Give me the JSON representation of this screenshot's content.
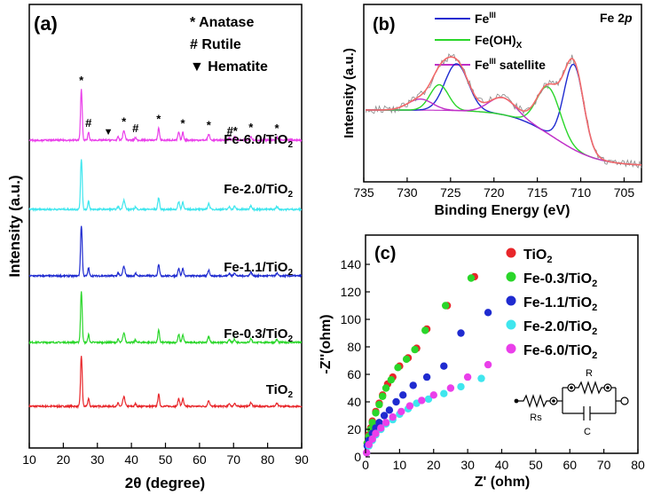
{
  "chart_data": [
    {
      "type": "line",
      "panel": "(a)",
      "xlabel": "2θ (degree)",
      "ylabel": "Intensity (a.u.)",
      "xlim": [
        10,
        90
      ],
      "xticks": [
        10,
        20,
        30,
        40,
        50,
        60,
        70,
        80,
        90
      ],
      "legend": [
        {
          "symbol": "*",
          "label": "Anatase"
        },
        {
          "symbol": "#",
          "label": "Rutile"
        },
        {
          "symbol": "▼",
          "label": "Hematite"
        }
      ],
      "series": [
        {
          "name": "TiO2",
          "label_main": "TiO",
          "label_sub": "2",
          "color": "#e8262a",
          "baseline": 0.0
        },
        {
          "name": "Fe-0.3/TiO2",
          "label_main": "Fe-0.3/TiO",
          "label_sub": "2",
          "color": "#2ad62a",
          "baseline": 1.0
        },
        {
          "name": "Fe-1.1/TiO2",
          "label_main": "Fe-1.1/TiO",
          "label_sub": "2",
          "color": "#1f2bd0",
          "baseline": 2.0
        },
        {
          "name": "Fe-2.0/TiO2",
          "label_main": "Fe-2.0/TiO",
          "label_sub": "2",
          "color": "#3fe6ee",
          "baseline": 3.0
        },
        {
          "name": "Fe-6.0/TiO2",
          "label_main": "Fe-6.0/TiO",
          "label_sub": "2",
          "color": "#ea3fea",
          "baseline": 4.0
        }
      ],
      "peaks": [
        {
          "pos": 25.3,
          "height": 1.9,
          "width": 0.35
        },
        {
          "pos": 27.4,
          "height": 0.3,
          "width": 0.3
        },
        {
          "pos": 36.1,
          "height": 0.12,
          "width": 0.3
        },
        {
          "pos": 37.8,
          "height": 0.35,
          "width": 0.45
        },
        {
          "pos": 41.2,
          "height": 0.1,
          "width": 0.3
        },
        {
          "pos": 48.0,
          "height": 0.45,
          "width": 0.35
        },
        {
          "pos": 53.9,
          "height": 0.3,
          "width": 0.35
        },
        {
          "pos": 55.1,
          "height": 0.28,
          "width": 0.35
        },
        {
          "pos": 62.7,
          "height": 0.22,
          "width": 0.4
        },
        {
          "pos": 68.8,
          "height": 0.1,
          "width": 0.35
        },
        {
          "pos": 70.3,
          "height": 0.12,
          "width": 0.35
        },
        {
          "pos": 75.1,
          "height": 0.14,
          "width": 0.4
        },
        {
          "pos": 82.7,
          "height": 0.1,
          "width": 0.4
        }
      ],
      "annotations": [
        {
          "symbol": "*",
          "x": 25.3
        },
        {
          "symbol": "#",
          "x": 27.4
        },
        {
          "symbol": "▼",
          "x": 33.2
        },
        {
          "symbol": "*",
          "x": 37.8
        },
        {
          "symbol": "#",
          "x": 41.2
        },
        {
          "symbol": "*",
          "x": 48.0
        },
        {
          "symbol": "*",
          "x": 55.1
        },
        {
          "symbol": "*",
          "x": 62.7
        },
        {
          "symbol": "#*",
          "x": 69.6
        },
        {
          "symbol": "*",
          "x": 75.1
        },
        {
          "symbol": "*",
          "x": 82.7
        }
      ]
    },
    {
      "type": "line",
      "panel": "(b)",
      "title": "Fe 2p",
      "title_main": "Fe 2",
      "title_italic": "p",
      "xlabel": "Binding Energy (eV)",
      "ylabel": "Intensity (a.u.)",
      "xlim": [
        735,
        703
      ],
      "xticks": [
        735,
        730,
        725,
        720,
        715,
        710,
        705
      ],
      "legend": [
        {
          "label_main": "Fe",
          "label_sup": "III",
          "label_sub": "",
          "color": "#1f2bd0"
        },
        {
          "label_main": "Fe(OH)",
          "label_sup": "",
          "label_sub": "X",
          "color": "#2ad62a"
        },
        {
          "label_main": "Fe",
          "label_sup": "III",
          "label_sub": "",
          "label_tail": " satellite",
          "color": "#c030c8"
        }
      ],
      "components": [
        {
          "name": "FeIII",
          "color": "#1f2bd0",
          "peaks": [
            {
              "center": 710.8,
              "amp": 1.0,
              "width": 1.6
            },
            {
              "center": 724.3,
              "amp": 0.55,
              "width": 1.9
            }
          ]
        },
        {
          "name": "Fe(OH)x",
          "color": "#2ad62a",
          "peaks": [
            {
              "center": 713.7,
              "amp": 0.55,
              "width": 1.9
            },
            {
              "center": 726.3,
              "amp": 0.3,
              "width": 1.5
            }
          ]
        },
        {
          "name": "FeIII satellite",
          "color": "#c030c8",
          "peaks": [
            {
              "center": 719.0,
              "amp": 0.2,
              "width": 2.2
            },
            {
              "center": 728.5,
              "amp": 0.13,
              "width": 2.0
            }
          ]
        }
      ],
      "envelope_color": "#f26a6a",
      "raw_color": "#888888"
    },
    {
      "type": "scatter",
      "panel": "(c)",
      "xlabel": "Z' (ohm)",
      "ylabel": "-Z''(ohm)",
      "xlim": [
        0,
        80
      ],
      "ylim": [
        0,
        140
      ],
      "xticks": [
        0,
        10,
        20,
        30,
        40,
        50,
        60,
        70,
        80
      ],
      "yticks": [
        0,
        20,
        40,
        60,
        80,
        100,
        120,
        140
      ],
      "series": [
        {
          "name": "TiO2",
          "label_main": "TiO",
          "label_sub": "2",
          "color": "#e8262a",
          "x": [
            0.5,
            1,
            1.5,
            2,
            3,
            4,
            5,
            6.5,
            8,
            10,
            12.5,
            15,
            18,
            24,
            32
          ],
          "y": [
            10,
            16,
            21,
            26,
            33,
            39,
            45,
            53,
            58,
            66,
            72,
            79,
            93,
            110,
            131
          ]
        },
        {
          "name": "Fe-0.3/TiO2",
          "label_main": "Fe-0.3/TiO",
          "label_sub": "2",
          "color": "#2ad62a",
          "x": [
            0.5,
            1,
            1.5,
            2,
            3,
            4,
            5,
            6,
            7.5,
            9.5,
            12,
            14.5,
            17.5,
            23.5,
            31
          ],
          "y": [
            10,
            15,
            20,
            25,
            32,
            38,
            44,
            50,
            56,
            65,
            71,
            78,
            92,
            110,
            130
          ]
        },
        {
          "name": "Fe-1.1/TiO2",
          "label_main": "Fe-1.1/TiO",
          "label_sub": "2",
          "color": "#1f2bd0",
          "x": [
            0.5,
            1,
            2,
            3,
            4,
            5.5,
            7,
            9,
            11,
            14,
            18,
            23,
            28,
            36
          ],
          "y": [
            8,
            12,
            17,
            21,
            25,
            30,
            34,
            40,
            45,
            52,
            58,
            66,
            90,
            105
          ]
        },
        {
          "name": "Fe-2.0/TiO2",
          "label_main": "Fe-2.0/TiO",
          "label_sub": "2",
          "color": "#3fe6ee",
          "x": [
            0.3,
            1,
            2,
            3,
            4.5,
            6,
            8,
            10,
            12.5,
            15,
            18.5,
            23,
            28,
            34
          ],
          "y": [
            3,
            8,
            12,
            16,
            20,
            24,
            27,
            31,
            35,
            39,
            42,
            46,
            51,
            57
          ]
        },
        {
          "name": "Fe-6.0/TiO2",
          "label_main": "Fe-6.0/TiO",
          "label_sub": "2",
          "color": "#ea3fea",
          "x": [
            0.3,
            1,
            2,
            3,
            4.5,
            6,
            8,
            10.5,
            13,
            16.5,
            20,
            25,
            30,
            36
          ],
          "y": [
            3,
            9,
            13,
            17,
            21,
            25,
            29,
            33,
            37,
            41,
            45,
            50,
            58,
            67
          ]
        }
      ],
      "inset": {
        "label_r": "R",
        "label_rs": "Rs",
        "label_c": "C"
      }
    }
  ]
}
